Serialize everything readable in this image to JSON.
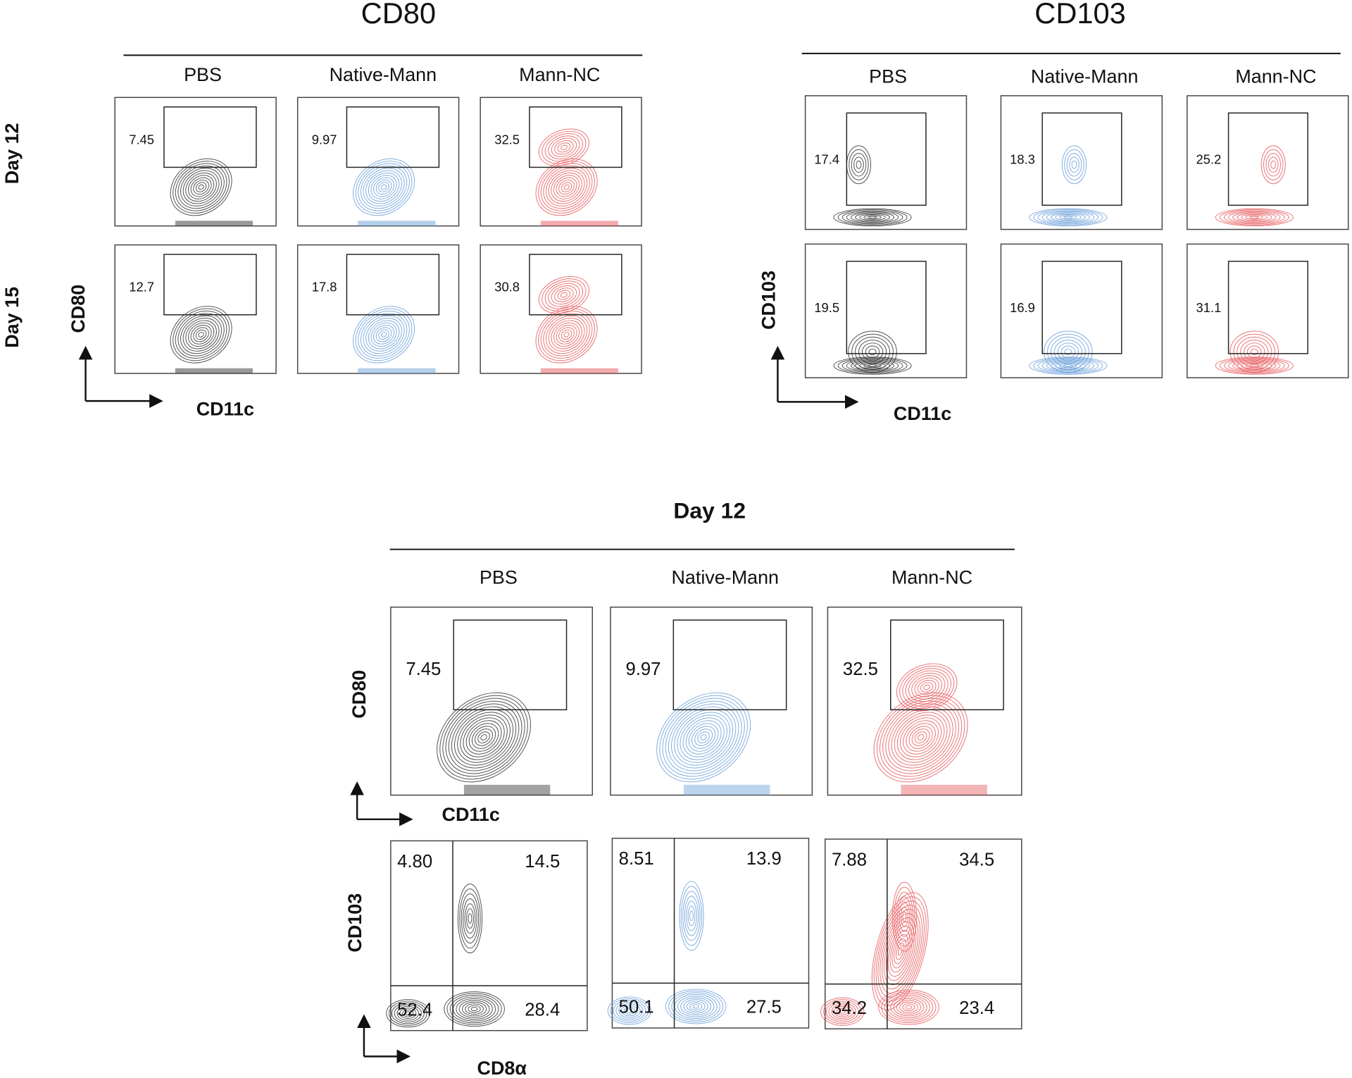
{
  "row_labels": [
    "Day 12",
    "Day 15"
  ],
  "panels": [
    {
      "title": "CD80",
      "columns": [
        "PBS",
        "Native-Mann",
        "Mann-NC"
      ],
      "y_axis": "CD80",
      "x_axis": "CD11c",
      "gates": [
        [
          "7.45",
          "9.97",
          "32.5"
        ],
        [
          "12.7",
          "17.8",
          "30.8"
        ]
      ]
    },
    {
      "title": "CD103",
      "columns": [
        "PBS",
        "Native-Mann",
        "Mann-NC"
      ],
      "y_axis": "CD103",
      "x_axis": "CD11c",
      "gates": [
        [
          "17.4",
          "18.3",
          "25.2"
        ],
        [
          "19.5",
          "16.9",
          "31.1"
        ]
      ]
    }
  ],
  "bottom": {
    "title": "Day 12",
    "columns": [
      "PBS",
      "Native-Mann",
      "Mann-NC"
    ],
    "cd80": {
      "y_axis": "CD80",
      "x_axis": "CD11c",
      "gates": [
        "7.45",
        "9.97",
        "32.5"
      ]
    },
    "cd103": {
      "y_axis": "CD103",
      "x_axis": "CD8α",
      "quadrants": [
        [
          "4.80",
          "14.5",
          "52.4",
          "28.4"
        ],
        [
          "8.51",
          "13.9",
          "50.1",
          "27.5"
        ],
        [
          "7.88",
          "34.5",
          "34.2",
          "23.4"
        ]
      ]
    }
  }
}
